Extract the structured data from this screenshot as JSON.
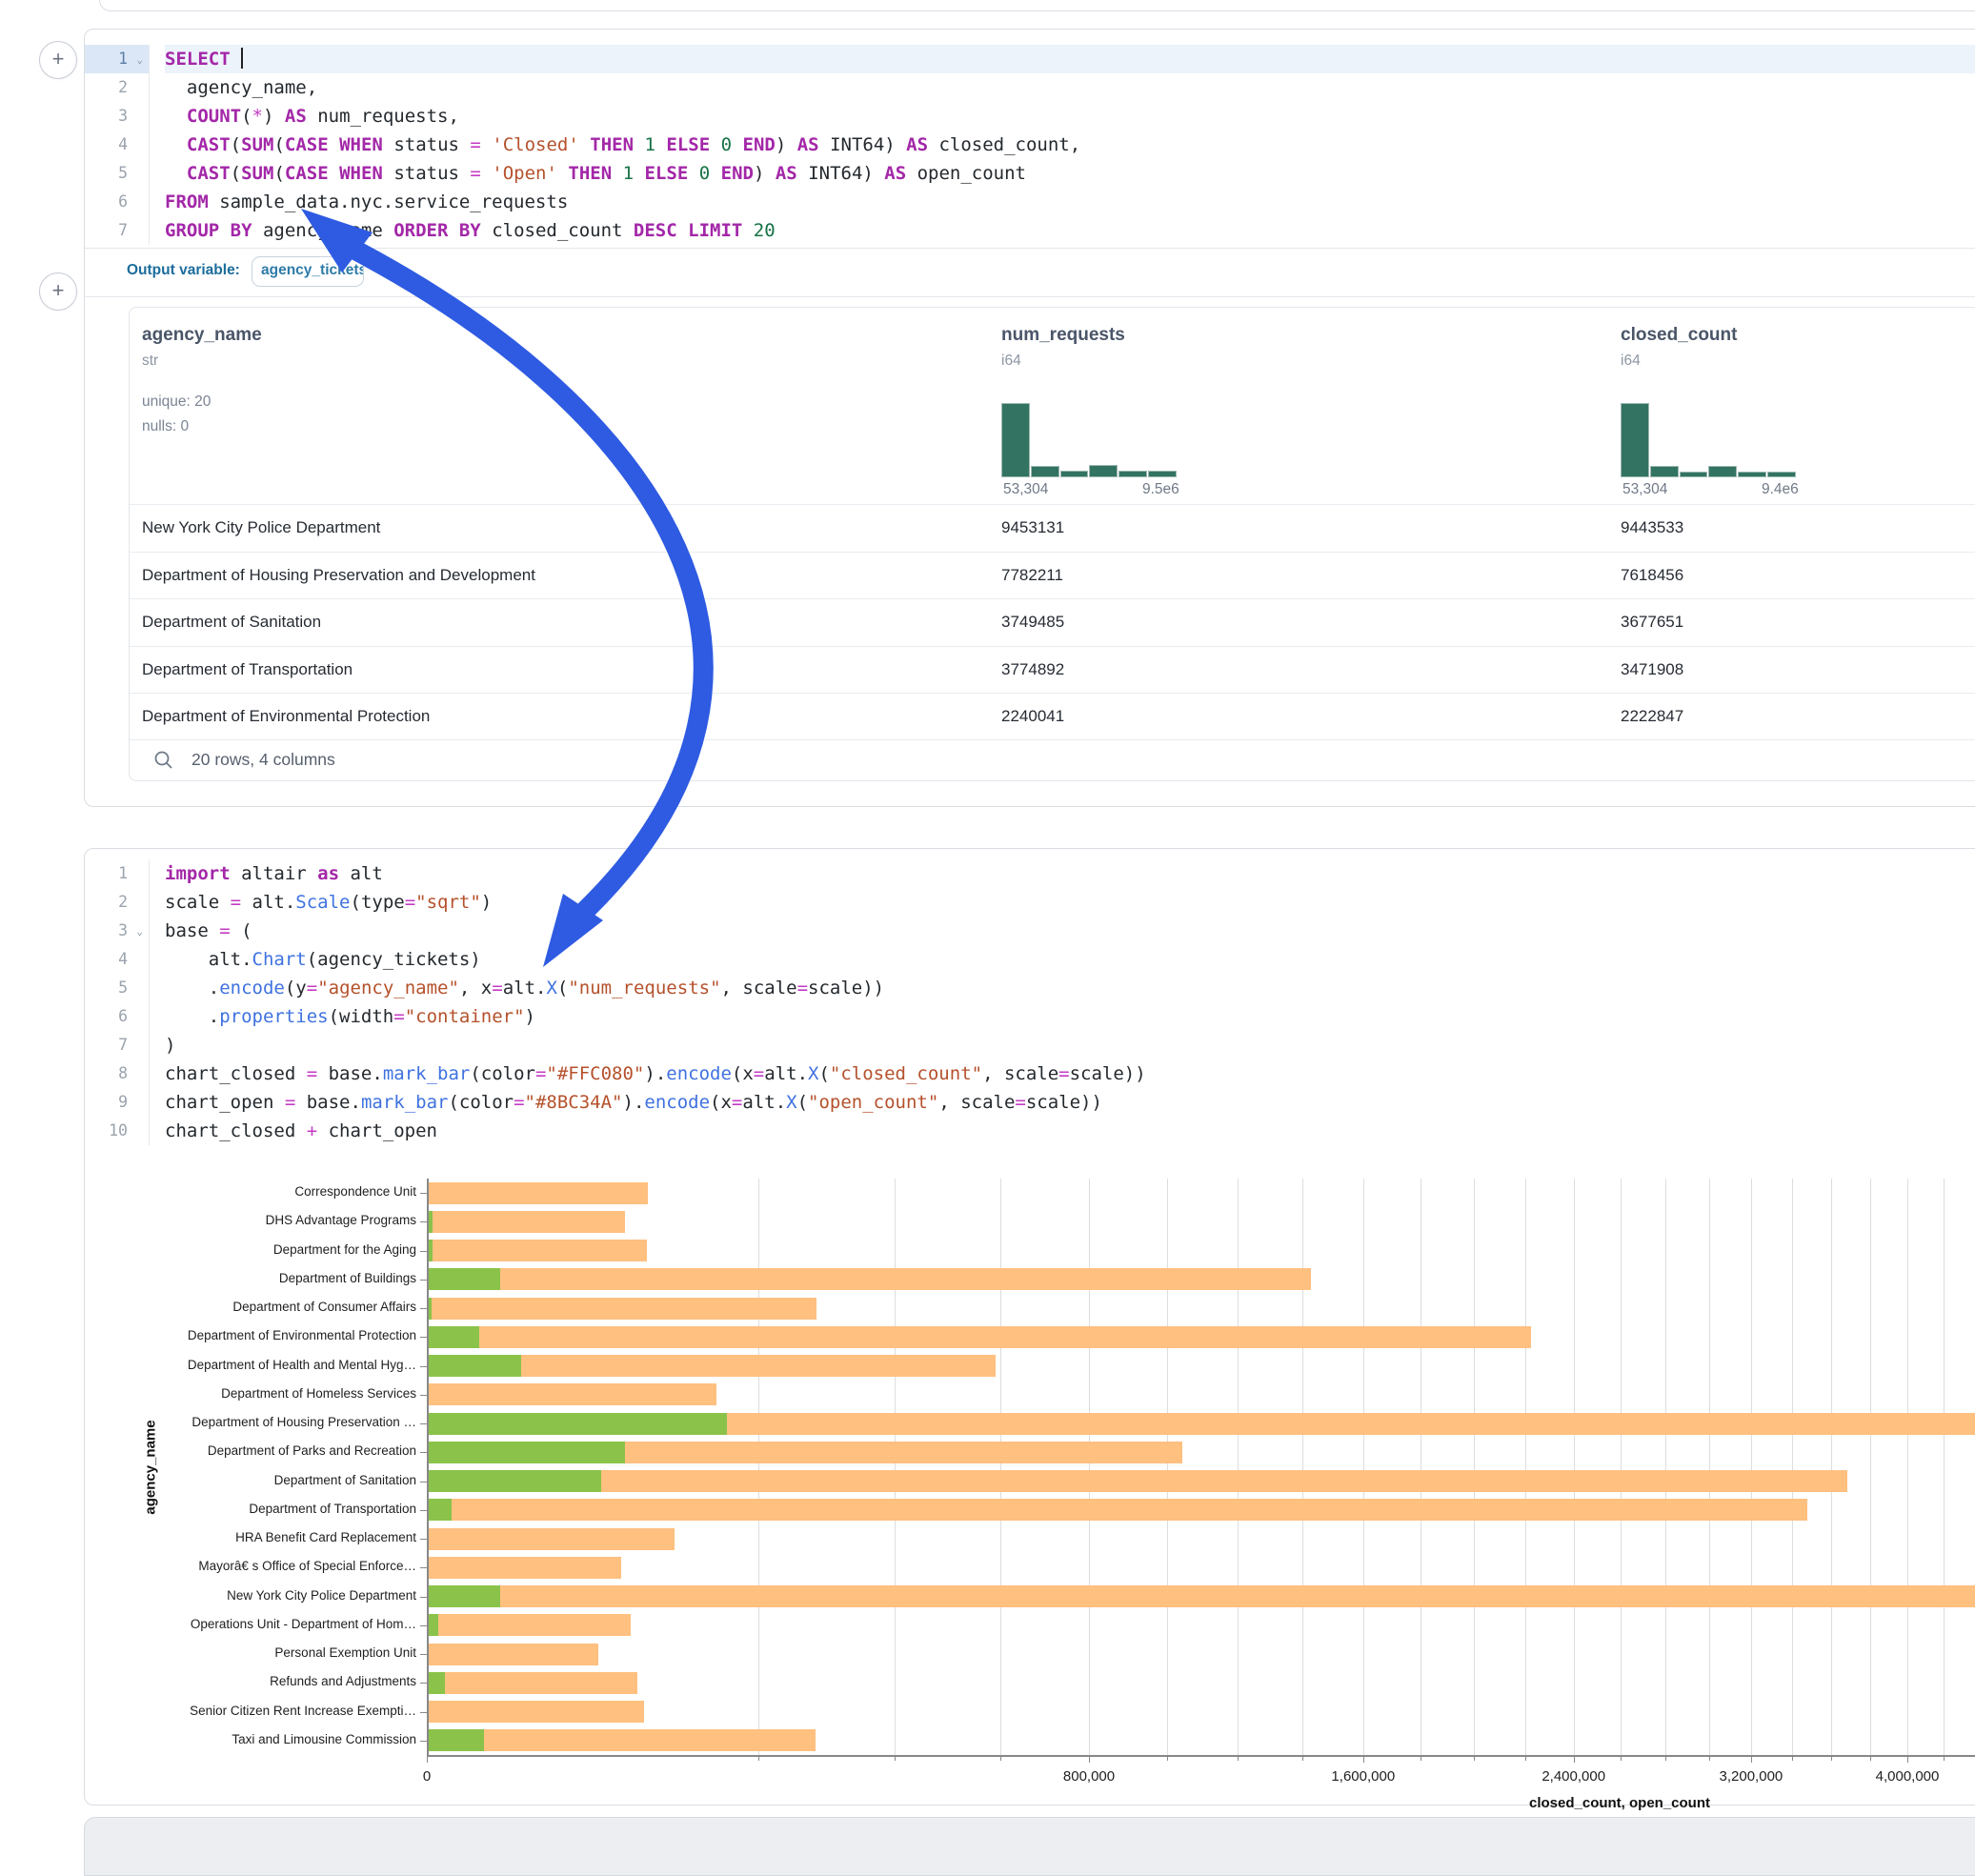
{
  "accent": {
    "arrow_blue": "#2e5be2",
    "hist_teal": "#337362",
    "closed_bar": "#FFC080",
    "open_bar": "#8BC34A"
  },
  "sql_cell": {
    "lines": [
      {
        "num": "1",
        "fold": true,
        "active": true,
        "segs": [
          [
            "kw",
            "SELECT"
          ],
          [
            "pl",
            " "
          ]
        ]
      },
      {
        "num": "2",
        "segs": [
          [
            "pl",
            "  agency_name,"
          ]
        ]
      },
      {
        "num": "3",
        "segs": [
          [
            "pl",
            "  "
          ],
          [
            "kw",
            "COUNT"
          ],
          [
            "pl",
            "("
          ],
          [
            "op",
            "*"
          ],
          [
            "pl",
            ") "
          ],
          [
            "kw",
            "AS"
          ],
          [
            "pl",
            " num_requests,"
          ]
        ]
      },
      {
        "num": "4",
        "segs": [
          [
            "pl",
            "  "
          ],
          [
            "kw",
            "CAST"
          ],
          [
            "pl",
            "("
          ],
          [
            "kw",
            "SUM"
          ],
          [
            "pl",
            "("
          ],
          [
            "kw",
            "CASE"
          ],
          [
            "pl",
            " "
          ],
          [
            "kw",
            "WHEN"
          ],
          [
            "pl",
            " status "
          ],
          [
            "op",
            "="
          ],
          [
            "pl",
            " "
          ],
          [
            "str",
            "'Closed'"
          ],
          [
            "pl",
            " "
          ],
          [
            "kw",
            "THEN"
          ],
          [
            "pl",
            " "
          ],
          [
            "num",
            "1"
          ],
          [
            "pl",
            " "
          ],
          [
            "kw",
            "ELSE"
          ],
          [
            "pl",
            " "
          ],
          [
            "num",
            "0"
          ],
          [
            "pl",
            " "
          ],
          [
            "kw",
            "END"
          ],
          [
            "pl",
            ") "
          ],
          [
            "kw",
            "AS"
          ],
          [
            "pl",
            " INT64) "
          ],
          [
            "kw",
            "AS"
          ],
          [
            "pl",
            " closed_count,"
          ]
        ]
      },
      {
        "num": "5",
        "segs": [
          [
            "pl",
            "  "
          ],
          [
            "kw",
            "CAST"
          ],
          [
            "pl",
            "("
          ],
          [
            "kw",
            "SUM"
          ],
          [
            "pl",
            "("
          ],
          [
            "kw",
            "CASE"
          ],
          [
            "pl",
            " "
          ],
          [
            "kw",
            "WHEN"
          ],
          [
            "pl",
            " status "
          ],
          [
            "op",
            "="
          ],
          [
            "pl",
            " "
          ],
          [
            "str",
            "'Open'"
          ],
          [
            "pl",
            " "
          ],
          [
            "kw",
            "THEN"
          ],
          [
            "pl",
            " "
          ],
          [
            "num",
            "1"
          ],
          [
            "pl",
            " "
          ],
          [
            "kw",
            "ELSE"
          ],
          [
            "pl",
            " "
          ],
          [
            "num",
            "0"
          ],
          [
            "pl",
            " "
          ],
          [
            "kw",
            "END"
          ],
          [
            "pl",
            ") "
          ],
          [
            "kw",
            "AS"
          ],
          [
            "pl",
            " INT64) "
          ],
          [
            "kw",
            "AS"
          ],
          [
            "pl",
            " open_count"
          ]
        ]
      },
      {
        "num": "6",
        "segs": [
          [
            "kw",
            "FROM"
          ],
          [
            "pl",
            " sample_data.nyc.service_requests"
          ]
        ]
      },
      {
        "num": "7",
        "segs": [
          [
            "kw",
            "GROUP BY"
          ],
          [
            "pl",
            " agency_name "
          ],
          [
            "kw",
            "ORDER BY"
          ],
          [
            "pl",
            " closed_count "
          ],
          [
            "kw",
            "DESC"
          ],
          [
            "pl",
            " "
          ],
          [
            "kw",
            "LIMIT"
          ],
          [
            "pl",
            " "
          ],
          [
            "num",
            "20"
          ]
        ]
      }
    ]
  },
  "output_row": {
    "label": "Output variable:",
    "variable": "agency_tickets"
  },
  "table": {
    "columns": [
      {
        "name": "agency_name",
        "type": "str",
        "stats": [
          "unique: 20",
          "nulls: 0"
        ]
      },
      {
        "name": "num_requests",
        "type": "i64",
        "hist": [
          1,
          0.15,
          0.09,
          0.17,
          0.09,
          0.09
        ],
        "hist_min": "53,304",
        "hist_max": "9.5e6"
      },
      {
        "name": "closed_count",
        "type": "i64",
        "hist": [
          1,
          0.15,
          0.08,
          0.16,
          0.08,
          0.08
        ],
        "hist_min": "53,304",
        "hist_max": "9.4e6"
      }
    ],
    "rows": [
      [
        "New York City Police Department",
        "9453131",
        "9443533"
      ],
      [
        "Department of Housing Preservation and Development",
        "7782211",
        "7618456"
      ],
      [
        "Department of Sanitation",
        "3749485",
        "3677651"
      ],
      [
        "Department of Transportation",
        "3774892",
        "3471908"
      ],
      [
        "Department of Environmental Protection",
        "2240041",
        "2222847"
      ]
    ],
    "footer": "20 rows, 4 columns"
  },
  "python_cell": {
    "lines": [
      {
        "num": "1",
        "segs": [
          [
            "kw",
            "import"
          ],
          [
            "pl",
            " altair "
          ],
          [
            "kw",
            "as"
          ],
          [
            "pl",
            " alt"
          ]
        ]
      },
      {
        "num": "2",
        "segs": [
          [
            "pl",
            "scale "
          ],
          [
            "op",
            "="
          ],
          [
            "pl",
            " alt."
          ],
          [
            "fn",
            "Scale"
          ],
          [
            "pl",
            "(type"
          ],
          [
            "op",
            "="
          ],
          [
            "str",
            "\"sqrt\""
          ],
          [
            "pl",
            ")"
          ]
        ]
      },
      {
        "num": "3",
        "fold": true,
        "segs": [
          [
            "pl",
            "base "
          ],
          [
            "op",
            "="
          ],
          [
            "pl",
            " ("
          ]
        ]
      },
      {
        "num": "4",
        "segs": [
          [
            "pl",
            "    alt."
          ],
          [
            "fn",
            "Chart"
          ],
          [
            "pl",
            "(agency_tickets)"
          ]
        ]
      },
      {
        "num": "5",
        "segs": [
          [
            "pl",
            "    ."
          ],
          [
            "fn",
            "encode"
          ],
          [
            "pl",
            "(y"
          ],
          [
            "op",
            "="
          ],
          [
            "str",
            "\"agency_name\""
          ],
          [
            "pl",
            ", x"
          ],
          [
            "op",
            "="
          ],
          [
            "pl",
            "alt."
          ],
          [
            "fn",
            "X"
          ],
          [
            "pl",
            "("
          ],
          [
            "str",
            "\"num_requests\""
          ],
          [
            "pl",
            ", scale"
          ],
          [
            "op",
            "="
          ],
          [
            "pl",
            "scale))"
          ]
        ]
      },
      {
        "num": "6",
        "segs": [
          [
            "pl",
            "    ."
          ],
          [
            "fn",
            "properties"
          ],
          [
            "pl",
            "(width"
          ],
          [
            "op",
            "="
          ],
          [
            "str",
            "\"container\""
          ],
          [
            "pl",
            ")"
          ]
        ]
      },
      {
        "num": "7",
        "segs": [
          [
            "pl",
            ")"
          ]
        ]
      },
      {
        "num": "8",
        "segs": [
          [
            "pl",
            "chart_closed "
          ],
          [
            "op",
            "="
          ],
          [
            "pl",
            " base."
          ],
          [
            "fn",
            "mark_bar"
          ],
          [
            "pl",
            "(color"
          ],
          [
            "op",
            "="
          ],
          [
            "str",
            "\"#FFC080\""
          ],
          [
            "pl",
            ")."
          ],
          [
            "fn",
            "encode"
          ],
          [
            "pl",
            "(x"
          ],
          [
            "op",
            "="
          ],
          [
            "pl",
            "alt."
          ],
          [
            "fn",
            "X"
          ],
          [
            "pl",
            "("
          ],
          [
            "str",
            "\"closed_count\""
          ],
          [
            "pl",
            ", scale"
          ],
          [
            "op",
            "="
          ],
          [
            "pl",
            "scale))"
          ]
        ]
      },
      {
        "num": "9",
        "segs": [
          [
            "pl",
            "chart_open "
          ],
          [
            "op",
            "="
          ],
          [
            "pl",
            " base."
          ],
          [
            "fn",
            "mark_bar"
          ],
          [
            "pl",
            "(color"
          ],
          [
            "op",
            "="
          ],
          [
            "str",
            "\"#8BC34A\""
          ],
          [
            "pl",
            ")."
          ],
          [
            "fn",
            "encode"
          ],
          [
            "pl",
            "(x"
          ],
          [
            "op",
            "="
          ],
          [
            "pl",
            "alt."
          ],
          [
            "fn",
            "X"
          ],
          [
            "pl",
            "("
          ],
          [
            "str",
            "\"open_count\""
          ],
          [
            "pl",
            ", scale"
          ],
          [
            "op",
            "="
          ],
          [
            "pl",
            "scale))"
          ]
        ]
      },
      {
        "num": "10",
        "segs": [
          [
            "pl",
            "chart_closed "
          ],
          [
            "op",
            "+"
          ],
          [
            "pl",
            " chart_open"
          ]
        ]
      }
    ]
  },
  "chart_data": {
    "type": "bar",
    "orientation": "horizontal",
    "scale_type": "sqrt",
    "xlabel": "closed_count, open_count",
    "ylabel": "agency_name",
    "x_tick_labels": [
      "0",
      "800,000",
      "1,600,000",
      "2,400,000",
      "3,200,000",
      "4,000,000"
    ],
    "x_tick_values": [
      0,
      800000,
      1600000,
      2400000,
      3200000,
      4000000
    ],
    "gridline_step": 200000,
    "series": [
      {
        "name": "closed_count",
        "color": "#FFC080"
      },
      {
        "name": "open_count",
        "color": "#8BC34A"
      }
    ],
    "categories": [
      {
        "label": "Correspondence Unit",
        "closed": 88000,
        "open": 0
      },
      {
        "label": "DHS Advantage Programs",
        "closed": 71000,
        "open": 40
      },
      {
        "label": "Department for the Aging",
        "closed": 87600,
        "open": 40
      },
      {
        "label": "Department of Buildings",
        "closed": 1423000,
        "open": 9600
      },
      {
        "label": "Department of Consumer Affairs",
        "closed": 276000,
        "open": 30
      },
      {
        "label": "Department of Environmental Protection",
        "closed": 2222847,
        "open": 4800
      },
      {
        "label": "Department of Health and Mental Hyg…",
        "closed": 588000,
        "open": 16000
      },
      {
        "label": "Department of Homeless Services",
        "closed": 152000,
        "open": 0
      },
      {
        "label": "Department of Housing Preservation …",
        "closed": 7618456,
        "open": 163755
      },
      {
        "label": "Department of Parks and Recreation",
        "closed": 1039000,
        "open": 71000
      },
      {
        "label": "Department of Sanitation",
        "closed": 3677651,
        "open": 55000
      },
      {
        "label": "Department of Transportation",
        "closed": 3471908,
        "open": 1000
      },
      {
        "label": "HRA Benefit Card Replacement",
        "closed": 111000,
        "open": 0
      },
      {
        "label": "Mayorâ€ s Office of Special Enforce…",
        "closed": 68000,
        "open": 0
      },
      {
        "label": "New York City Police Department",
        "closed": 9443533,
        "open": 9598
      },
      {
        "label": "Operations Unit - Department of Hom…",
        "closed": 75000,
        "open": 200
      },
      {
        "label": "Personal Exemption Unit",
        "closed": 53304,
        "open": 0
      },
      {
        "label": "Refunds and Adjustments",
        "closed": 80000,
        "open": 520
      },
      {
        "label": "Senior Citizen Rent Increase Exempti…",
        "closed": 85000,
        "open": 0
      },
      {
        "label": "Taxi and Limousine Commission",
        "closed": 274000,
        "open": 5800
      }
    ]
  }
}
